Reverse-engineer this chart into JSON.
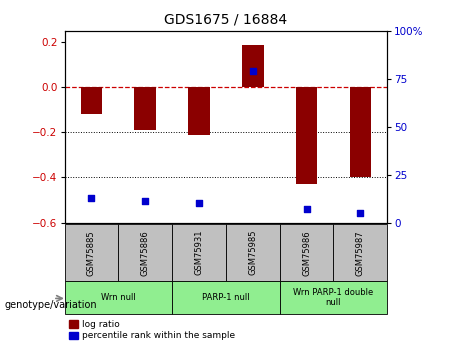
{
  "title": "GDS1675 / 16884",
  "samples": [
    "GSM75885",
    "GSM75886",
    "GSM75931",
    "GSM75985",
    "GSM75986",
    "GSM75987"
  ],
  "log_ratios": [
    -0.12,
    -0.19,
    -0.21,
    0.19,
    -0.43,
    -0.4
  ],
  "percentile_ranks": [
    13,
    11,
    10,
    79,
    7,
    5
  ],
  "group_labels": [
    "Wrn null",
    "PARP-1 null",
    "Wrn PARP-1 double\nnull"
  ],
  "group_ranges": [
    [
      0,
      2
    ],
    [
      2,
      4
    ],
    [
      4,
      6
    ]
  ],
  "group_color": "#90EE90",
  "bar_color": "#8B0000",
  "dot_color": "#0000CD",
  "ylim_left": [
    -0.6,
    0.25
  ],
  "ylim_right": [
    0,
    100
  ],
  "right_yticks": [
    0,
    25,
    50,
    75,
    100
  ],
  "right_yticklabels": [
    "0",
    "25",
    "50",
    "75",
    "100%"
  ],
  "left_yticks": [
    -0.6,
    -0.4,
    -0.2,
    0.0,
    0.2
  ],
  "hline_color": "#CC0000",
  "dotted_line_color": "black",
  "sample_box_color": "#C0C0C0",
  "bar_width": 0.4
}
